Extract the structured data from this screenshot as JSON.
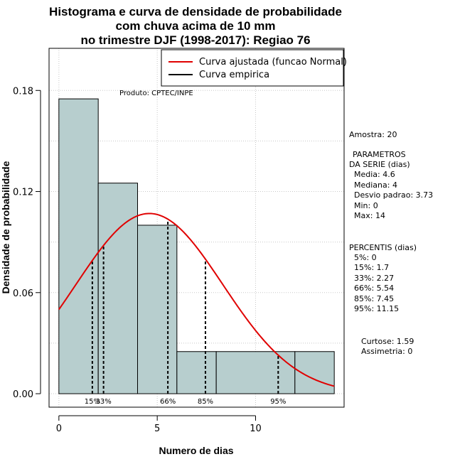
{
  "colors": {
    "bar_fill": "#b7cece",
    "curve": "#e00000",
    "grid": "#c8c8c8",
    "axis": "#000000"
  },
  "chart_data": {
    "type": "bar",
    "title_lines": [
      "Histograma e curva de densidade de probabilidade",
      "com chuva acima de 10 mm",
      "no trimestre DJF (1998-2017): Regiao 76"
    ],
    "xlabel": "Numero de dias",
    "ylabel": "Densidade de probabilidade",
    "xlim": [
      -0.5,
      14.5
    ],
    "ylim": [
      -0.008,
      0.205
    ],
    "x_ticks": [
      0,
      5,
      10
    ],
    "x_tick_labels": [
      "0",
      "5",
      "10"
    ],
    "y_ticks": [
      0.0,
      0.06,
      0.12,
      0.18
    ],
    "y_tick_labels": [
      "0.00",
      "0.06",
      "0.12",
      "0.18"
    ],
    "bins": [
      {
        "start": 0,
        "end": 2,
        "density": 0.175
      },
      {
        "start": 2,
        "end": 4,
        "density": 0.125
      },
      {
        "start": 4,
        "end": 6,
        "density": 0.1
      },
      {
        "start": 6,
        "end": 8,
        "density": 0.025
      },
      {
        "start": 8,
        "end": 12,
        "density": 0.025
      },
      {
        "start": 12,
        "end": 14,
        "density": 0.025
      }
    ],
    "normal_curve": {
      "mean": 4.6,
      "sd": 3.73,
      "x_from": 0,
      "x_to": 14
    },
    "percentile_lines": [
      {
        "x": 1.7,
        "label": "15%"
      },
      {
        "x": 2.27,
        "label": "33%"
      },
      {
        "x": 5.54,
        "label": "66%"
      },
      {
        "x": 7.45,
        "label": "85%"
      },
      {
        "x": 11.15,
        "label": "95%"
      }
    ],
    "legend": {
      "position": "top-right",
      "entries": [
        {
          "label": "Curva ajustada (funcao Normal)",
          "color": "#e00000"
        },
        {
          "label": "Curva empirica",
          "color": "#000000"
        }
      ]
    },
    "annotation": "Produto: CPTEC/INPE",
    "grid": true
  },
  "side_panel": {
    "sample": "Amostra: 20",
    "params_title_1": "PARAMETROS",
    "params_title_2": "DA SERIE (dias)",
    "params": [
      "Media: 4.6",
      "Mediana: 4",
      "Desvio padrao: 3.73",
      "Min: 0",
      "Max: 14"
    ],
    "percentis_title": "PERCENTIS (dias)",
    "percentis": [
      "5%: 0",
      "15%: 1.7",
      "33%: 2.27",
      "66%: 5.54",
      "85%: 7.45",
      "95%: 11.15"
    ],
    "curtose": "Curtose: 1.59",
    "assimetria": "Assimetria: 0"
  }
}
